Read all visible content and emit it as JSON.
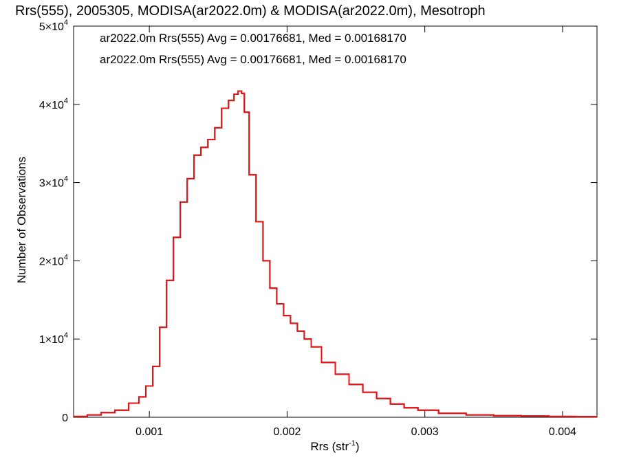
{
  "chart_data": {
    "type": "histogram",
    "title": "Rrs(555), 2005305, MODISA(ar2022.0m) & MODISA(ar2022.0m), Mesotroph",
    "xlabel": "Rrs (str",
    "xlabel_unit_exponent": "-1",
    "xlabel_close": ")",
    "ylabel": "Number of Observations",
    "xlim": [
      0.00045,
      0.00425
    ],
    "ylim": [
      0,
      50000
    ],
    "x_ticks": [
      {
        "value": 0.001,
        "label": "0.001"
      },
      {
        "value": 0.002,
        "label": "0.002"
      },
      {
        "value": 0.003,
        "label": "0.003"
      },
      {
        "value": 0.004,
        "label": "0.004"
      }
    ],
    "y_ticks": [
      {
        "value": 0,
        "mantissa": "0",
        "exponent": ""
      },
      {
        "value": 10000,
        "mantissa": "1×10",
        "exponent": "4"
      },
      {
        "value": 20000,
        "mantissa": "2×10",
        "exponent": "4"
      },
      {
        "value": 30000,
        "mantissa": "3×10",
        "exponent": "4"
      },
      {
        "value": 40000,
        "mantissa": "4×10",
        "exponent": "4"
      },
      {
        "value": 50000,
        "mantissa": "5×10",
        "exponent": "4"
      }
    ],
    "legend": [
      {
        "text": "ar2022.0m Rrs(555) Avg = 0.00176681, Med = 0.00168170",
        "color": "#000000"
      },
      {
        "text": "ar2022.0m Rrs(555) Avg = 0.00176681, Med = 0.00168170",
        "color": "#ee1111"
      }
    ],
    "legend_position": "top-left",
    "grid": false,
    "series": [
      {
        "color": "#000000",
        "x": [
          0.0005,
          0.0006,
          0.0007,
          0.0008,
          0.0009,
          0.00095,
          0.001,
          0.00105,
          0.0011,
          0.00115,
          0.0012,
          0.00125,
          0.0013,
          0.00135,
          0.0014,
          0.00145,
          0.0015,
          0.00155,
          0.0016,
          0.00163,
          0.00166,
          0.00168,
          0.0017,
          0.00175,
          0.0018,
          0.00185,
          0.0019,
          0.00195,
          0.002,
          0.00205,
          0.0021,
          0.00215,
          0.0022,
          0.0023,
          0.0024,
          0.0025,
          0.0026,
          0.0027,
          0.0028,
          0.0029,
          0.003,
          0.0032,
          0.0034,
          0.0036,
          0.0038,
          0.004,
          0.0042
        ],
        "y": [
          100,
          300,
          600,
          900,
          1800,
          2600,
          4000,
          6500,
          11500,
          17500,
          23000,
          27500,
          30500,
          33500,
          34500,
          35500,
          37000,
          39500,
          40500,
          41300,
          41700,
          41400,
          39000,
          31000,
          25000,
          20000,
          16500,
          14500,
          13000,
          12000,
          11000,
          10000,
          9000,
          7000,
          5500,
          4200,
          3200,
          2400,
          1700,
          1200,
          900,
          500,
          300,
          200,
          150,
          100,
          80
        ]
      },
      {
        "color": "#ee1111",
        "x": [
          0.0005,
          0.0006,
          0.0007,
          0.0008,
          0.0009,
          0.00095,
          0.001,
          0.00105,
          0.0011,
          0.00115,
          0.0012,
          0.00125,
          0.0013,
          0.00135,
          0.0014,
          0.00145,
          0.0015,
          0.00155,
          0.0016,
          0.00163,
          0.00166,
          0.00168,
          0.0017,
          0.00175,
          0.0018,
          0.00185,
          0.0019,
          0.00195,
          0.002,
          0.00205,
          0.0021,
          0.00215,
          0.0022,
          0.0023,
          0.0024,
          0.0025,
          0.0026,
          0.0027,
          0.0028,
          0.0029,
          0.003,
          0.0032,
          0.0034,
          0.0036,
          0.0038,
          0.004,
          0.0042
        ],
        "y": [
          100,
          300,
          600,
          900,
          1800,
          2600,
          4000,
          6500,
          11500,
          17500,
          23000,
          27500,
          30500,
          33500,
          34500,
          35500,
          37000,
          39500,
          40500,
          41300,
          41700,
          41400,
          39000,
          31000,
          25000,
          20000,
          16500,
          14500,
          13000,
          12000,
          11000,
          10000,
          9000,
          7000,
          5500,
          4200,
          3200,
          2400,
          1700,
          1200,
          900,
          500,
          300,
          200,
          150,
          100,
          80
        ]
      }
    ]
  }
}
